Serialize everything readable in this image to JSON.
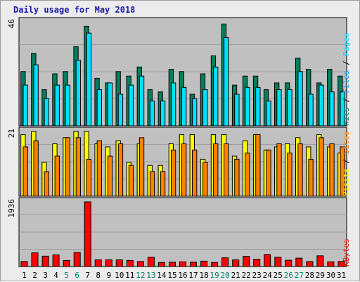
{
  "chart_data": {
    "type": "bar",
    "title": "Daily usage for May 2018",
    "days": [
      "1",
      "2",
      "3",
      "4",
      "5",
      "6",
      "7",
      "8",
      "9",
      "10",
      "11",
      "12",
      "13",
      "14",
      "15",
      "16",
      "17",
      "18",
      "19",
      "20",
      "21",
      "22",
      "23",
      "24",
      "25",
      "26",
      "27",
      "28",
      "29",
      "30",
      "31"
    ],
    "weekend_days": [
      "5",
      "6",
      "12",
      "13",
      "19",
      "20",
      "26",
      "27"
    ],
    "colors": {
      "pages": "#00e0ff",
      "files": "#00a0ff",
      "hits": "#007f5f",
      "visits": "#ffff00",
      "sites": "#ff8000",
      "kbytes": "#ff0000",
      "weekend_label": "#00806b",
      "weekday_label": "#000000",
      "plot_bg": "#c0c0c0"
    },
    "panels": [
      {
        "name": "hits-files-pages",
        "ymax_label": "46",
        "ymax": 46,
        "legend": [
          "Pages",
          "Files",
          "Hits"
        ],
        "series": [
          {
            "name": "Hits",
            "key": "hits",
            "values": [
              24,
              32,
              16,
              23,
              24,
              35,
              44,
              21,
              19,
              24,
              22,
              26,
              16,
              15,
              25,
              24,
              14,
              23,
              31,
              45,
              18,
              22,
              22,
              16,
              19,
              19,
              30,
              25,
              19,
              25,
              22
            ]
          },
          {
            "name": "Pages",
            "key": "pages",
            "values": [
              18,
              27,
              12,
              18,
              18,
              29,
              41,
              16,
              19,
              14,
              18,
              22,
              11,
              11,
              19,
              17,
              12,
              16,
              26,
              39,
              14,
              17,
              17,
              11,
              16,
              16,
              24,
              14,
              18,
              15,
              15
            ]
          }
        ]
      },
      {
        "name": "visits-sites",
        "ymax_label": "21",
        "ymax": 21,
        "legend": [
          "Sites",
          "Visits"
        ],
        "series": [
          {
            "name": "Visits",
            "key": "visits",
            "values": [
              20,
              21,
              11,
              17,
              19,
              21,
              21,
              17,
              16,
              18,
              11,
              17,
              10,
              10,
              17,
              20,
              20,
              12,
              20,
              20,
              13,
              18,
              20,
              15,
              16,
              17,
              19,
              16,
              20,
              16,
              14
            ]
          },
          {
            "name": "Sites",
            "key": "sites",
            "values": [
              16,
              18,
              8,
              13,
              19,
              19,
              12,
              18,
              13,
              17,
              10,
              19,
              8,
              8,
              15,
              17,
              15,
              11,
              17,
              17,
              12,
              14,
              20,
              15,
              17,
              14,
              17,
              12,
              19,
              17,
              16
            ]
          }
        ]
      },
      {
        "name": "kbytes",
        "ymax_label": "1936",
        "ymax": 1936,
        "legend": [
          "KBytes"
        ],
        "series": [
          {
            "name": "KBytes",
            "key": "kbytes",
            "values": [
              150,
              410,
              310,
              350,
              180,
              420,
              1936,
              200,
              200,
              200,
              180,
              150,
              280,
              120,
              130,
              140,
              130,
              160,
              120,
              260,
              200,
              300,
              220,
              360,
              280,
              190,
              250,
              150,
              320,
              140,
              150
            ]
          }
        ]
      }
    ]
  }
}
